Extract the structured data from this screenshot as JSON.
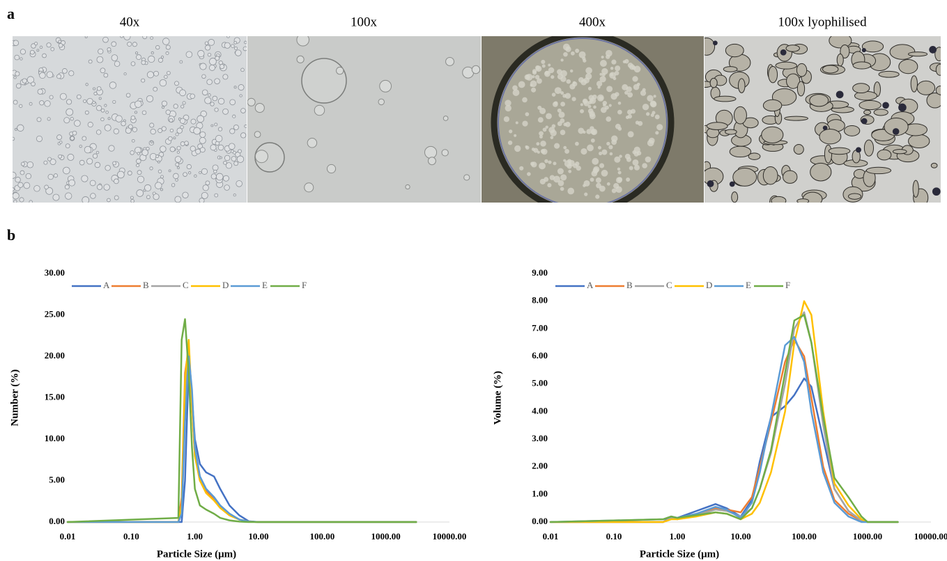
{
  "panel_a": {
    "label": "a",
    "captions": [
      "40x",
      "100x",
      "400x",
      "100x lyophilised"
    ]
  },
  "panel_b": {
    "label": "b"
  },
  "chart_data": [
    {
      "type": "line",
      "xlabel": "Particle Size (μm)",
      "ylabel": "Number (%)",
      "xscale": "log",
      "legend": "top-left",
      "grid": false,
      "xlim": [
        0.01,
        10000
      ],
      "xticks": [
        {
          "value": 0.01,
          "label": "0.01"
        },
        {
          "value": 0.1,
          "label": "0.10"
        },
        {
          "value": 1,
          "label": "1.00"
        },
        {
          "value": 10,
          "label": "10.00"
        },
        {
          "value": 100,
          "label": "100.00"
        },
        {
          "value": 1000,
          "label": "1000.00"
        },
        {
          "value": 10000,
          "label": "10000.00"
        }
      ],
      "ylim": [
        0,
        30
      ],
      "yticks": [
        {
          "value": 0,
          "label": "0.00"
        },
        {
          "value": 5,
          "label": "5.00"
        },
        {
          "value": 10,
          "label": "10.00"
        },
        {
          "value": 15,
          "label": "15.00"
        },
        {
          "value": 20,
          "label": "20.00"
        },
        {
          "value": 25,
          "label": "25.00"
        },
        {
          "value": 30,
          "label": "30.00"
        }
      ],
      "x": [
        0.01,
        0.55,
        0.62,
        0.7,
        0.8,
        0.9,
        1.0,
        1.2,
        1.5,
        2.0,
        2.5,
        3.5,
        5,
        7,
        10,
        3000
      ],
      "series": [
        {
          "name": "A",
          "color": "#4472c4",
          "values": [
            0,
            0,
            0,
            5,
            19,
            15,
            10,
            7,
            6,
            5.5,
            4,
            2,
            0.8,
            0.1,
            0,
            0
          ]
        },
        {
          "name": "B",
          "color": "#ed7d31",
          "values": [
            0,
            0,
            3,
            18,
            21,
            14,
            8,
            5,
            3.8,
            2.8,
            1.8,
            0.9,
            0.3,
            0.05,
            0,
            0
          ]
        },
        {
          "name": "C",
          "color": "#a5a5a5",
          "values": [
            0,
            0,
            2,
            15,
            21,
            15,
            9,
            5.5,
            4,
            3,
            2,
            1,
            0.3,
            0.05,
            0,
            0
          ]
        },
        {
          "name": "D",
          "color": "#ffc000",
          "values": [
            0,
            0,
            2,
            17,
            22,
            14,
            8,
            5,
            3.5,
            2.6,
            1.7,
            0.8,
            0.3,
            0.05,
            0,
            0
          ]
        },
        {
          "name": "E",
          "color": "#5b9bd5",
          "values": [
            0,
            0,
            1,
            12,
            20,
            16,
            9,
            5.5,
            4,
            3,
            2,
            1,
            0.3,
            0.05,
            0,
            0
          ]
        },
        {
          "name": "F",
          "color": "#70ad47",
          "values": [
            0,
            0.5,
            22,
            24.5,
            18,
            9,
            4,
            2,
            1.5,
            1,
            0.5,
            0.2,
            0.05,
            0,
            0,
            0
          ]
        }
      ]
    },
    {
      "type": "line",
      "xlabel": "Particle Size (μm)",
      "ylabel": "Volume (%)",
      "xscale": "log",
      "legend": "top-left",
      "grid": false,
      "xlim": [
        0.01,
        10000
      ],
      "xticks": [
        {
          "value": 0.01,
          "label": "0.01"
        },
        {
          "value": 0.1,
          "label": "0.10"
        },
        {
          "value": 1,
          "label": "1.00"
        },
        {
          "value": 10,
          "label": "10.00"
        },
        {
          "value": 100,
          "label": "100.00"
        },
        {
          "value": 1000,
          "label": "1000.00"
        },
        {
          "value": 10000,
          "label": "10000.00"
        }
      ],
      "ylim": [
        0,
        9
      ],
      "yticks": [
        {
          "value": 0,
          "label": "0.00"
        },
        {
          "value": 1,
          "label": "1.00"
        },
        {
          "value": 2,
          "label": "2.00"
        },
        {
          "value": 3,
          "label": "3.00"
        },
        {
          "value": 4,
          "label": "4.00"
        },
        {
          "value": 5,
          "label": "5.00"
        },
        {
          "value": 6,
          "label": "6.00"
        },
        {
          "value": 7,
          "label": "7.00"
        },
        {
          "value": 8,
          "label": "8.00"
        },
        {
          "value": 9,
          "label": "9.00"
        }
      ],
      "x": [
        0.01,
        0.6,
        0.8,
        1,
        2,
        4,
        6,
        10,
        15,
        20,
        30,
        50,
        70,
        100,
        130,
        200,
        300,
        500,
        800,
        1000,
        3000
      ],
      "series": [
        {
          "name": "A",
          "color": "#4472c4",
          "values": [
            0,
            0,
            0.2,
            0.15,
            0.4,
            0.65,
            0.5,
            0.2,
            0.8,
            2.2,
            3.8,
            4.2,
            4.6,
            5.2,
            4.9,
            3,
            1.2,
            0.4,
            0.05,
            0,
            0
          ]
        },
        {
          "name": "B",
          "color": "#ed7d31",
          "values": [
            0,
            0,
            0.15,
            0.1,
            0.3,
            0.5,
            0.45,
            0.35,
            0.9,
            2,
            3.6,
            5.8,
            6.6,
            6,
            4.5,
            2,
            0.8,
            0.3,
            0.05,
            0,
            0
          ]
        },
        {
          "name": "C",
          "color": "#a5a5a5",
          "values": [
            0,
            0,
            0.15,
            0.1,
            0.25,
            0.45,
            0.4,
            0.2,
            0.5,
            1.2,
            2.5,
            5,
            7,
            7.6,
            6.5,
            3.5,
            1.2,
            0.4,
            0.05,
            0,
            0
          ]
        },
        {
          "name": "D",
          "color": "#ffc000",
          "values": [
            0,
            0,
            0.1,
            0.1,
            0.2,
            0.35,
            0.3,
            0.1,
            0.3,
            0.7,
            1.8,
            4,
            6.5,
            8,
            7.5,
            4,
            1.4,
            0.6,
            0.1,
            0,
            0
          ]
        },
        {
          "name": "E",
          "color": "#5b9bd5",
          "values": [
            0,
            0.1,
            0.2,
            0.15,
            0.3,
            0.55,
            0.45,
            0.15,
            0.7,
            1.8,
            3.8,
            6.4,
            6.7,
            5.8,
            4,
            1.8,
            0.7,
            0.2,
            0,
            0,
            0
          ]
        },
        {
          "name": "F",
          "color": "#70ad47",
          "values": [
            0,
            0.1,
            0.2,
            0.15,
            0.25,
            0.35,
            0.3,
            0.1,
            0.5,
            1.2,
            2.6,
            5.4,
            7.3,
            7.5,
            6.5,
            3.8,
            1.6,
            0.9,
            0.2,
            0,
            0
          ]
        }
      ]
    }
  ]
}
